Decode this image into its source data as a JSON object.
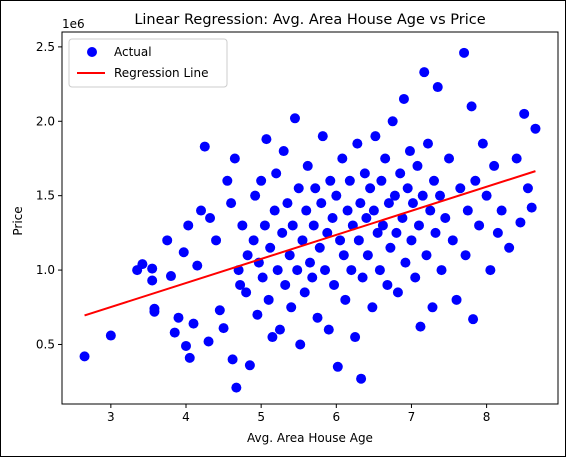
{
  "chart_data": {
    "type": "scatter",
    "title": "Linear Regression: Avg. Area House Age vs Price",
    "xlabel": "Avg. Area House Age",
    "ylabel": "Price",
    "y_offset_label": "1e6",
    "xlim": [
      2.35,
      8.95
    ],
    "ylim": [
      0.1,
      2.6
    ],
    "x_ticks": [
      3,
      4,
      5,
      6,
      7,
      8
    ],
    "x_tick_labels": [
      "3",
      "4",
      "5",
      "6",
      "7",
      "8"
    ],
    "y_ticks": [
      0.5,
      1.0,
      1.5,
      2.0,
      2.5
    ],
    "y_tick_labels": [
      "0.5",
      "1.0",
      "1.5",
      "2.0",
      "2.5"
    ],
    "grid": false,
    "legend_position": "top-left",
    "colors": {
      "actual": "#0000ff",
      "regression": "#ff0000"
    },
    "series": [
      {
        "name": "Actual",
        "kind": "scatter",
        "points": [
          [
            2.65,
            0.42
          ],
          [
            3.0,
            0.56
          ],
          [
            3.35,
            1.0
          ],
          [
            3.42,
            1.04
          ],
          [
            3.55,
            0.93
          ],
          [
            3.55,
            1.01
          ],
          [
            3.58,
            0.72
          ],
          [
            3.58,
            0.74
          ],
          [
            3.75,
            1.2
          ],
          [
            3.8,
            0.96
          ],
          [
            3.85,
            0.58
          ],
          [
            3.9,
            0.68
          ],
          [
            3.97,
            1.12
          ],
          [
            4.0,
            0.49
          ],
          [
            4.03,
            1.3
          ],
          [
            4.05,
            0.41
          ],
          [
            4.1,
            0.64
          ],
          [
            4.15,
            1.03
          ],
          [
            4.2,
            1.4
          ],
          [
            4.25,
            1.83
          ],
          [
            4.3,
            0.52
          ],
          [
            4.32,
            1.35
          ],
          [
            4.4,
            1.2
          ],
          [
            4.45,
            0.73
          ],
          [
            4.5,
            0.61
          ],
          [
            4.55,
            1.6
          ],
          [
            4.6,
            1.45
          ],
          [
            4.62,
            0.4
          ],
          [
            4.65,
            1.75
          ],
          [
            4.67,
            0.21
          ],
          [
            4.7,
            1.0
          ],
          [
            4.72,
            0.9
          ],
          [
            4.75,
            1.3
          ],
          [
            4.8,
            0.85
          ],
          [
            4.82,
            1.1
          ],
          [
            4.85,
            0.36
          ],
          [
            4.9,
            1.2
          ],
          [
            4.92,
            1.5
          ],
          [
            4.95,
            0.7
          ],
          [
            4.97,
            1.05
          ],
          [
            5.0,
            1.6
          ],
          [
            5.02,
            0.95
          ],
          [
            5.05,
            1.3
          ],
          [
            5.07,
            1.88
          ],
          [
            5.1,
            0.8
          ],
          [
            5.12,
            1.15
          ],
          [
            5.15,
            0.55
          ],
          [
            5.18,
            1.4
          ],
          [
            5.2,
            1.65
          ],
          [
            5.22,
            1.0
          ],
          [
            5.25,
            0.6
          ],
          [
            5.28,
            1.25
          ],
          [
            5.3,
            1.8
          ],
          [
            5.32,
            0.9
          ],
          [
            5.35,
            1.45
          ],
          [
            5.38,
            1.1
          ],
          [
            5.4,
            0.75
          ],
          [
            5.42,
            1.3
          ],
          [
            5.45,
            2.02
          ],
          [
            5.48,
            1.0
          ],
          [
            5.5,
            1.55
          ],
          [
            5.52,
            0.5
          ],
          [
            5.55,
            1.2
          ],
          [
            5.58,
            0.85
          ],
          [
            5.6,
            1.4
          ],
          [
            5.62,
            1.7
          ],
          [
            5.65,
            1.05
          ],
          [
            5.68,
            0.95
          ],
          [
            5.7,
            1.3
          ],
          [
            5.72,
            1.55
          ],
          [
            5.75,
            0.68
          ],
          [
            5.78,
            1.15
          ],
          [
            5.8,
            1.45
          ],
          [
            5.82,
            1.9
          ],
          [
            5.85,
            1.0
          ],
          [
            5.88,
            1.25
          ],
          [
            5.9,
            0.6
          ],
          [
            5.92,
            1.6
          ],
          [
            5.95,
            1.35
          ],
          [
            5.97,
            0.9
          ],
          [
            6.0,
            1.5
          ],
          [
            6.02,
            0.35
          ],
          [
            6.05,
            1.2
          ],
          [
            6.08,
            1.75
          ],
          [
            6.1,
            1.1
          ],
          [
            6.12,
            0.8
          ],
          [
            6.15,
            1.4
          ],
          [
            6.18,
            1.6
          ],
          [
            6.2,
            1.0
          ],
          [
            6.22,
            1.3
          ],
          [
            6.25,
            0.55
          ],
          [
            6.28,
            1.85
          ],
          [
            6.3,
            1.2
          ],
          [
            6.32,
            1.45
          ],
          [
            6.33,
            0.27
          ],
          [
            6.35,
            0.95
          ],
          [
            6.38,
            1.65
          ],
          [
            6.4,
            1.35
          ],
          [
            6.42,
            1.1
          ],
          [
            6.45,
            1.55
          ],
          [
            6.48,
            0.75
          ],
          [
            6.5,
            1.4
          ],
          [
            6.52,
            1.9
          ],
          [
            6.55,
            1.25
          ],
          [
            6.58,
            1.0
          ],
          [
            6.6,
            1.6
          ],
          [
            6.62,
            1.3
          ],
          [
            6.65,
            1.75
          ],
          [
            6.68,
            0.9
          ],
          [
            6.7,
            1.45
          ],
          [
            6.72,
            1.15
          ],
          [
            6.75,
            2.0
          ],
          [
            6.78,
            1.5
          ],
          [
            6.8,
            1.25
          ],
          [
            6.82,
            0.85
          ],
          [
            6.85,
            1.65
          ],
          [
            6.88,
            1.35
          ],
          [
            6.9,
            2.15
          ],
          [
            6.92,
            1.05
          ],
          [
            6.95,
            1.55
          ],
          [
            6.98,
            1.8
          ],
          [
            7.0,
            1.2
          ],
          [
            7.02,
            1.45
          ],
          [
            7.05,
            0.95
          ],
          [
            7.08,
            1.7
          ],
          [
            7.1,
            1.3
          ],
          [
            7.12,
            0.62
          ],
          [
            7.15,
            1.5
          ],
          [
            7.17,
            2.33
          ],
          [
            7.2,
            1.1
          ],
          [
            7.22,
            1.85
          ],
          [
            7.25,
            1.4
          ],
          [
            7.28,
            0.75
          ],
          [
            7.3,
            1.6
          ],
          [
            7.32,
            1.25
          ],
          [
            7.35,
            2.23
          ],
          [
            7.38,
            1.5
          ],
          [
            7.4,
            1.0
          ],
          [
            7.45,
            1.35
          ],
          [
            7.5,
            1.75
          ],
          [
            7.55,
            1.2
          ],
          [
            7.6,
            0.8
          ],
          [
            7.65,
            1.55
          ],
          [
            7.7,
            2.46
          ],
          [
            7.72,
            1.1
          ],
          [
            7.75,
            1.4
          ],
          [
            7.8,
            2.1
          ],
          [
            7.82,
            0.67
          ],
          [
            7.85,
            1.6
          ],
          [
            7.9,
            1.3
          ],
          [
            7.95,
            1.85
          ],
          [
            8.0,
            1.5
          ],
          [
            8.05,
            1.0
          ],
          [
            8.1,
            1.7
          ],
          [
            8.15,
            1.25
          ],
          [
            8.2,
            1.4
          ],
          [
            8.3,
            1.15
          ],
          [
            8.4,
            1.75
          ],
          [
            8.45,
            1.32
          ],
          [
            8.5,
            2.05
          ],
          [
            8.55,
            1.55
          ],
          [
            8.6,
            1.42
          ],
          [
            8.65,
            1.95
          ]
        ]
      },
      {
        "name": "Regression Line",
        "kind": "line",
        "points": [
          [
            2.65,
            0.695
          ],
          [
            8.65,
            1.665
          ]
        ]
      }
    ]
  }
}
